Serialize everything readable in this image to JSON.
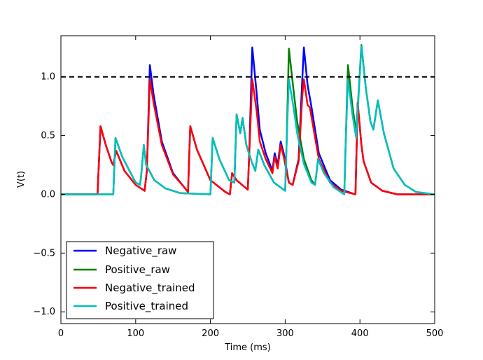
{
  "chart_data": {
    "type": "line",
    "xlabel": "Time (ms)",
    "ylabel": "V(t)",
    "xlim": [
      0,
      500
    ],
    "ylim": [
      -1.1,
      1.35
    ],
    "x_ticks": [
      0,
      100,
      200,
      300,
      400,
      500
    ],
    "x_tick_labels": [
      "0",
      "100",
      "200",
      "300",
      "400",
      "500"
    ],
    "y_ticks": [
      -1.0,
      -0.5,
      0.0,
      0.5,
      1.0
    ],
    "y_tick_labels": [
      "−1.0",
      "−0.5",
      "0.0",
      "0.5",
      "1.0"
    ],
    "threshold": 1.0,
    "grid": false,
    "legend_position": "lower-left",
    "colors": {
      "Negative_raw": "#0000ff",
      "Positive_raw": "#008000",
      "Negative_trained": "#ff0000",
      "Positive_trained": "#00bfbf",
      "threshold": "#000000"
    },
    "series": [
      {
        "name": "Negative_raw",
        "points": [
          [
            0,
            0
          ],
          [
            49,
            0
          ],
          [
            53,
            0.58
          ],
          [
            60,
            0.42
          ],
          [
            68,
            0.27
          ],
          [
            70,
            0.25
          ],
          [
            74,
            0.37
          ],
          [
            85,
            0.2
          ],
          [
            100,
            0.08
          ],
          [
            112,
            0.03
          ],
          [
            115,
            0.2
          ],
          [
            119,
            1.1
          ],
          [
            124,
            0.85
          ],
          [
            135,
            0.45
          ],
          [
            150,
            0.18
          ],
          [
            165,
            0.06
          ],
          [
            170,
            0.02
          ],
          [
            173,
            0.58
          ],
          [
            182,
            0.38
          ],
          [
            200,
            0.12
          ],
          [
            220,
            0.02
          ],
          [
            226,
            0.0
          ],
          [
            229,
            0.18
          ],
          [
            235,
            0.12
          ],
          [
            250,
            0.04
          ],
          [
            252,
            0.35
          ],
          [
            256,
            1.25
          ],
          [
            262,
            0.85
          ],
          [
            266,
            0.55
          ],
          [
            274,
            0.35
          ],
          [
            283,
            0.2
          ],
          [
            286,
            0.35
          ],
          [
            290,
            0.25
          ],
          [
            294,
            0.45
          ],
          [
            298,
            0.35
          ],
          [
            305,
            0.1
          ],
          [
            310,
            0.08
          ],
          [
            318,
            0.3
          ],
          [
            323,
            1.0
          ],
          [
            325,
            1.25
          ],
          [
            330,
            0.93
          ],
          [
            335,
            0.75
          ],
          [
            345,
            0.35
          ],
          [
            360,
            0.12
          ],
          [
            375,
            0.04
          ],
          [
            394,
            0.0
          ],
          [
            397,
            0.78
          ],
          [
            402,
            0.42
          ],
          [
            405,
            0.28
          ],
          [
            415,
            0.1
          ],
          [
            430,
            0.03
          ],
          [
            450,
            0.0
          ],
          [
            500,
            0.0
          ]
        ]
      },
      {
        "name": "Positive_raw",
        "points": [
          [
            0,
            0
          ],
          [
            70,
            0
          ],
          [
            73,
            0.48
          ],
          [
            82,
            0.32
          ],
          [
            100,
            0.1
          ],
          [
            106,
            0.08
          ],
          [
            108,
            0.2
          ],
          [
            111,
            0.42
          ],
          [
            114,
            0.25
          ],
          [
            125,
            0.12
          ],
          [
            140,
            0.05
          ],
          [
            160,
            0.01
          ],
          [
            200,
            0.0
          ],
          [
            203,
            0.48
          ],
          [
            212,
            0.3
          ],
          [
            225,
            0.12
          ],
          [
            232,
            0.1
          ],
          [
            235,
            0.68
          ],
          [
            240,
            0.52
          ],
          [
            243,
            0.65
          ],
          [
            248,
            0.42
          ],
          [
            255,
            0.28
          ],
          [
            260,
            0.2
          ],
          [
            264,
            0.38
          ],
          [
            272,
            0.25
          ],
          [
            285,
            0.1
          ],
          [
            300,
            0.03
          ],
          [
            302,
            0.45
          ],
          [
            305,
            1.24
          ],
          [
            311,
            0.9
          ],
          [
            316,
            0.62
          ],
          [
            325,
            0.3
          ],
          [
            335,
            0.12
          ],
          [
            340,
            0.08
          ],
          [
            344,
            0.3
          ],
          [
            352,
            0.18
          ],
          [
            365,
            0.06
          ],
          [
            379,
            0.0
          ],
          [
            381,
            0.45
          ],
          [
            384,
            1.1
          ],
          [
            390,
            0.75
          ],
          [
            395,
            0.52
          ],
          [
            402,
            1.27
          ],
          [
            408,
            0.9
          ],
          [
            414,
            0.62
          ],
          [
            418,
            0.55
          ],
          [
            424,
            0.8
          ],
          [
            432,
            0.52
          ],
          [
            445,
            0.22
          ],
          [
            460,
            0.08
          ],
          [
            475,
            0.02
          ],
          [
            500,
            0.0
          ]
        ]
      },
      {
        "name": "Negative_trained",
        "points": [
          [
            0,
            0
          ],
          [
            49,
            0
          ],
          [
            53,
            0.58
          ],
          [
            60,
            0.42
          ],
          [
            68,
            0.27
          ],
          [
            70,
            0.25
          ],
          [
            74,
            0.37
          ],
          [
            85,
            0.2
          ],
          [
            100,
            0.08
          ],
          [
            112,
            0.03
          ],
          [
            115,
            0.2
          ],
          [
            119,
            0.98
          ],
          [
            124,
            0.78
          ],
          [
            135,
            0.42
          ],
          [
            150,
            0.17
          ],
          [
            165,
            0.06
          ],
          [
            170,
            0.02
          ],
          [
            173,
            0.58
          ],
          [
            182,
            0.38
          ],
          [
            200,
            0.12
          ],
          [
            220,
            0.02
          ],
          [
            226,
            0.0
          ],
          [
            229,
            0.18
          ],
          [
            235,
            0.12
          ],
          [
            250,
            0.04
          ],
          [
            252,
            0.35
          ],
          [
            256,
            0.98
          ],
          [
            262,
            0.7
          ],
          [
            266,
            0.45
          ],
          [
            274,
            0.3
          ],
          [
            283,
            0.18
          ],
          [
            286,
            0.32
          ],
          [
            290,
            0.22
          ],
          [
            294,
            0.42
          ],
          [
            298,
            0.32
          ],
          [
            305,
            0.1
          ],
          [
            310,
            0.08
          ],
          [
            318,
            0.28
          ],
          [
            323,
            0.85
          ],
          [
            325,
            0.98
          ],
          [
            330,
            0.76
          ],
          [
            333,
            0.74
          ],
          [
            345,
            0.3
          ],
          [
            360,
            0.1
          ],
          [
            375,
            0.03
          ],
          [
            394,
            0.0
          ],
          [
            397,
            0.78
          ],
          [
            402,
            0.42
          ],
          [
            405,
            0.28
          ],
          [
            415,
            0.1
          ],
          [
            430,
            0.03
          ],
          [
            450,
            0.0
          ],
          [
            500,
            0.0
          ]
        ]
      },
      {
        "name": "Positive_trained",
        "points": [
          [
            0,
            0
          ],
          [
            70,
            0
          ],
          [
            73,
            0.48
          ],
          [
            82,
            0.32
          ],
          [
            100,
            0.1
          ],
          [
            106,
            0.08
          ],
          [
            108,
            0.2
          ],
          [
            111,
            0.42
          ],
          [
            114,
            0.25
          ],
          [
            125,
            0.12
          ],
          [
            140,
            0.05
          ],
          [
            160,
            0.01
          ],
          [
            200,
            0.0
          ],
          [
            203,
            0.48
          ],
          [
            212,
            0.3
          ],
          [
            225,
            0.12
          ],
          [
            232,
            0.1
          ],
          [
            235,
            0.68
          ],
          [
            240,
            0.52
          ],
          [
            243,
            0.65
          ],
          [
            248,
            0.42
          ],
          [
            255,
            0.28
          ],
          [
            260,
            0.2
          ],
          [
            264,
            0.38
          ],
          [
            272,
            0.25
          ],
          [
            285,
            0.1
          ],
          [
            300,
            0.03
          ],
          [
            302,
            0.45
          ],
          [
            305,
            0.98
          ],
          [
            311,
            0.75
          ],
          [
            316,
            0.52
          ],
          [
            325,
            0.26
          ],
          [
            335,
            0.1
          ],
          [
            340,
            0.08
          ],
          [
            344,
            0.3
          ],
          [
            352,
            0.18
          ],
          [
            365,
            0.06
          ],
          [
            379,
            0.0
          ],
          [
            381,
            0.45
          ],
          [
            384,
            0.98
          ],
          [
            390,
            0.68
          ],
          [
            395,
            0.48
          ],
          [
            402,
            1.26
          ],
          [
            408,
            0.9
          ],
          [
            414,
            0.62
          ],
          [
            418,
            0.55
          ],
          [
            424,
            0.8
          ],
          [
            432,
            0.52
          ],
          [
            445,
            0.22
          ],
          [
            460,
            0.08
          ],
          [
            475,
            0.02
          ],
          [
            500,
            0.0
          ]
        ]
      }
    ]
  }
}
